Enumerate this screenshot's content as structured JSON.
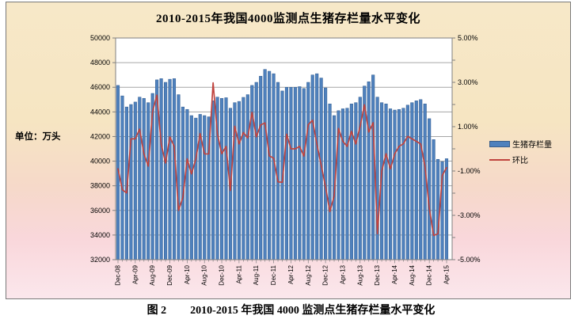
{
  "chart": {
    "title": "2010-2015年我国4000监测点生猪存栏量水平变化",
    "unit_label": "单位：万头"
  },
  "legend": {
    "items": [
      {
        "label": "生猪存栏量",
        "type": "bar",
        "color": "#4f81bd"
      },
      {
        "label": "环比",
        "type": "line",
        "color": "#c0443f"
      }
    ]
  },
  "caption": {
    "fig_no": "图 2",
    "text": "2010-2015 年我国 4000 监测点生猪存栏量水平变化"
  },
  "chart_data": {
    "type": "bar",
    "subtype": "bar+line combo, monthly Dec-2008 to Apr-2015 (77 points)",
    "title": "2010-2015年我国4000监测点生猪存栏量水平变化",
    "x_tick_labels": [
      "Dec-08",
      "Apr-09",
      "Aug-09",
      "Dec-09",
      "Apr-10",
      "Aug-10",
      "Dec-10",
      "Apr-11",
      "Aug-11",
      "Dec-11",
      "Apr-12",
      "Aug-12",
      "Dec-12",
      "Apr-13",
      "Aug-13",
      "Dec-13",
      "Apr-14",
      "Aug-14",
      "Dec-14",
      "Apr-15"
    ],
    "months_per_tick": 4,
    "left_axis": {
      "label": "万头",
      "min": 32000,
      "max": 50000,
      "step": 2000,
      "tick_labels": [
        "50000",
        "48000",
        "46000",
        "44000",
        "42000",
        "40000",
        "38000",
        "36000",
        "34000",
        "32000"
      ]
    },
    "right_axis": {
      "label": "%",
      "min": -5,
      "max": 5,
      "label_step": 2,
      "minor_step": 1,
      "tick_labels": [
        "5.00%",
        "3.00%",
        "1.00%",
        "-1.00%",
        "-3.00%",
        "-5.00%"
      ]
    },
    "grid": true,
    "legend_position": "right",
    "series": [
      {
        "name": "生猪存栏量",
        "type": "bar",
        "axis": "left",
        "color": "#4f81bd",
        "values": [
          46150,
          45300,
          44400,
          44600,
          44800,
          45200,
          45100,
          44750,
          45500,
          46600,
          46700,
          46400,
          46650,
          46700,
          45400,
          44400,
          44200,
          43700,
          43500,
          43800,
          43700,
          43600,
          44900,
          45200,
          45100,
          45150,
          44300,
          44750,
          44850,
          45180,
          45400,
          46150,
          46400,
          46900,
          47450,
          47300,
          47100,
          46400,
          45700,
          46000,
          46000,
          46000,
          46050,
          45900,
          46400,
          47000,
          47100,
          46750,
          45950,
          44650,
          43700,
          44100,
          44250,
          44300,
          44650,
          44750,
          45200,
          46100,
          46450,
          47000,
          45200,
          44750,
          44650,
          44250,
          44150,
          44200,
          44300,
          44550,
          44750,
          44900,
          45000,
          44650,
          43450,
          41750,
          40150,
          39950,
          40200
        ]
      },
      {
        "name": "环比",
        "type": "line",
        "axis": "right",
        "color": "#c0443f",
        "values": [
          -0.9,
          -1.84,
          -1.99,
          0.45,
          0.45,
          0.89,
          -0.22,
          -0.78,
          1.68,
          2.42,
          0.21,
          -0.64,
          0.54,
          0.11,
          -2.78,
          -2.2,
          -0.45,
          -1.13,
          -0.46,
          0.69,
          -0.23,
          -0.23,
          2.98,
          0.67,
          -0.22,
          0.11,
          -1.88,
          1.02,
          0.22,
          0.74,
          0.49,
          1.65,
          0.54,
          1.08,
          1.17,
          -0.32,
          -0.42,
          -1.49,
          -1.51,
          0.66,
          0.0,
          0.0,
          0.11,
          -0.33,
          1.09,
          1.29,
          0.21,
          -0.74,
          -1.71,
          -2.83,
          -2.13,
          0.92,
          0.34,
          0.11,
          0.79,
          0.22,
          1.01,
          1.99,
          0.76,
          1.18,
          -3.83,
          -1.0,
          -0.22,
          -0.9,
          -0.23,
          0.11,
          0.23,
          0.56,
          0.45,
          0.34,
          0.22,
          -0.78,
          -2.69,
          -3.91,
          -3.83,
          -1.2,
          -0.85
        ]
      }
    ],
    "colors": {
      "plot_bg": "#ffffff",
      "gridline": "#a6a6a6",
      "axis": "#7f7f7f",
      "text": "#000000"
    }
  }
}
